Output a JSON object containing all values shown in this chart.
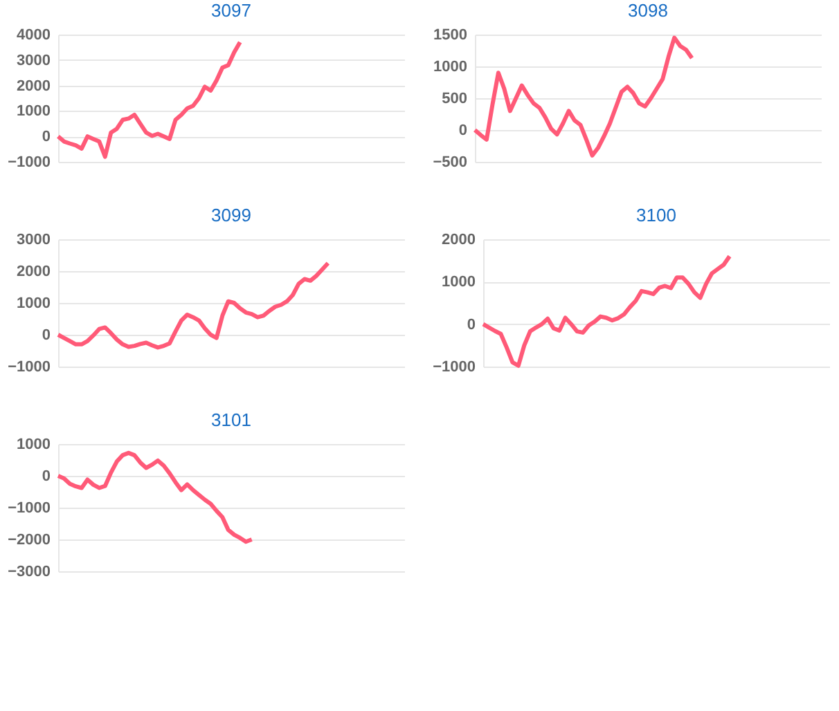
{
  "chart_data": [
    {
      "type": "line",
      "title": "3097",
      "categories": [
        null,
        null,
        null,
        null,
        null,
        null,
        null,
        null,
        null,
        null,
        null,
        null,
        null,
        null,
        null,
        null,
        null,
        null,
        null,
        null,
        null,
        null,
        null,
        null,
        null,
        null,
        null,
        null,
        null,
        null,
        null,
        null,
        null,
        null,
        null,
        null,
        null,
        null,
        null,
        null,
        null,
        null,
        null,
        null,
        null,
        null,
        null,
        null,
        null,
        null,
        null,
        null,
        null,
        null,
        null,
        null,
        null,
        null,
        null,
        null
      ],
      "tick_labels": "y",
      "grid": "y",
      "legend": false,
      "marker": "none",
      "line_style": "solid",
      "ylim": [
        -1000,
        4000
      ],
      "yticks": [
        -1000,
        0,
        1000,
        2000,
        3000,
        4000
      ],
      "series": [
        {
          "color": "#ff5a78",
          "values": [
            0,
            -200,
            -280,
            -350,
            -480,
            0,
            -100,
            -200,
            -800,
            150,
            300,
            650,
            700,
            850,
            500,
            150,
            20,
            100,
            0,
            -100,
            650,
            850,
            1100,
            1200,
            1500,
            1950,
            1800,
            2200,
            2700,
            2800,
            3300,
            3700,
            null,
            null,
            null,
            null,
            null,
            null,
            null,
            null,
            null,
            null,
            null,
            null,
            null,
            null,
            null,
            null,
            null,
            null,
            null,
            null,
            null,
            null,
            null,
            null,
            null,
            null,
            null,
            null
          ]
        }
      ]
    },
    {
      "type": "line",
      "title": "3098",
      "categories": [
        null,
        null,
        null,
        null,
        null,
        null,
        null,
        null,
        null,
        null,
        null,
        null,
        null,
        null,
        null,
        null,
        null,
        null,
        null,
        null,
        null,
        null,
        null,
        null,
        null,
        null,
        null,
        null,
        null,
        null,
        null,
        null,
        null,
        null,
        null,
        null,
        null,
        null,
        null,
        null,
        null,
        null,
        null,
        null,
        null,
        null,
        null,
        null,
        null,
        null,
        null,
        null,
        null,
        null,
        null,
        null,
        null,
        null,
        null,
        null
      ],
      "tick_labels": "y",
      "grid": "y",
      "legend": false,
      "marker": "none",
      "line_style": "solid",
      "ylim": [
        -500,
        1500
      ],
      "yticks": [
        -500,
        0,
        500,
        1000,
        1500
      ],
      "series": [
        {
          "color": "#ff5a78",
          "values": [
            0,
            -80,
            -150,
            400,
            900,
            650,
            300,
            500,
            700,
            550,
            420,
            350,
            200,
            20,
            -70,
            100,
            300,
            150,
            80,
            -150,
            -400,
            -280,
            -100,
            100,
            350,
            600,
            680,
            580,
            420,
            370,
            500,
            650,
            800,
            1150,
            1450,
            1320,
            1260,
            1130,
            null,
            null,
            null,
            null,
            null,
            null,
            null,
            null,
            null,
            null,
            null,
            null,
            null,
            null,
            null,
            null,
            null,
            null,
            null,
            null,
            null,
            null
          ]
        }
      ]
    },
    {
      "type": "line",
      "title": "3099",
      "categories": [
        null,
        null,
        null,
        null,
        null,
        null,
        null,
        null,
        null,
        null,
        null,
        null,
        null,
        null,
        null,
        null,
        null,
        null,
        null,
        null,
        null,
        null,
        null,
        null,
        null,
        null,
        null,
        null,
        null,
        null,
        null,
        null,
        null,
        null,
        null,
        null,
        null,
        null,
        null,
        null,
        null,
        null,
        null,
        null,
        null,
        null,
        null,
        null,
        null,
        null,
        null,
        null,
        null,
        null,
        null,
        null,
        null,
        null,
        null,
        null
      ],
      "tick_labels": "y",
      "grid": "y",
      "legend": false,
      "marker": "none",
      "line_style": "solid",
      "ylim": [
        -1000,
        3000
      ],
      "yticks": [
        -1000,
        0,
        1000,
        2000,
        3000
      ],
      "series": [
        {
          "color": "#ff5a78",
          "values": [
            0,
            -100,
            -200,
            -300,
            -300,
            -200,
            -20,
            180,
            230,
            50,
            -150,
            -300,
            -380,
            -350,
            -290,
            -250,
            -330,
            -400,
            -350,
            -270,
            100,
            450,
            630,
            550,
            450,
            200,
            0,
            -100,
            600,
            1050,
            1000,
            830,
            700,
            650,
            550,
            600,
            750,
            880,
            940,
            1050,
            1250,
            1600,
            1750,
            1700,
            1850,
            2050,
            2250,
            null,
            null,
            null,
            null,
            null,
            null,
            null,
            null,
            null,
            null,
            null,
            null,
            null
          ]
        }
      ]
    },
    {
      "type": "line",
      "title": "3100",
      "categories": [
        null,
        null,
        null,
        null,
        null,
        null,
        null,
        null,
        null,
        null,
        null,
        null,
        null,
        null,
        null,
        null,
        null,
        null,
        null,
        null,
        null,
        null,
        null,
        null,
        null,
        null,
        null,
        null,
        null,
        null,
        null,
        null,
        null,
        null,
        null,
        null,
        null,
        null,
        null,
        null,
        null,
        null,
        null,
        null,
        null,
        null,
        null,
        null,
        null,
        null,
        null,
        null,
        null,
        null,
        null,
        null,
        null,
        null,
        null,
        null
      ],
      "tick_labels": "y",
      "grid": "y",
      "legend": false,
      "marker": "none",
      "line_style": "solid",
      "ylim": [
        -1000,
        2000
      ],
      "yticks": [
        -1000,
        0,
        1000,
        2000
      ],
      "series": [
        {
          "color": "#ff5a78",
          "values": [
            0,
            -80,
            -160,
            -230,
            -550,
            -900,
            -980,
            -500,
            -170,
            -80,
            0,
            130,
            -100,
            -150,
            150,
            0,
            -170,
            -200,
            -30,
            60,
            180,
            150,
            90,
            140,
            230,
            400,
            550,
            780,
            750,
            710,
            860,
            900,
            850,
            1100,
            1100,
            950,
            750,
            620,
            950,
            1200,
            1300,
            1400,
            1600,
            null,
            null,
            null,
            null,
            null,
            null,
            null,
            null,
            null,
            null,
            null,
            null,
            null,
            null,
            null,
            null,
            null
          ]
        }
      ]
    },
    {
      "type": "line",
      "title": "3101",
      "categories": [
        null,
        null,
        null,
        null,
        null,
        null,
        null,
        null,
        null,
        null,
        null,
        null,
        null,
        null,
        null,
        null,
        null,
        null,
        null,
        null,
        null,
        null,
        null,
        null,
        null,
        null,
        null,
        null,
        null,
        null,
        null,
        null,
        null,
        null,
        null,
        null,
        null,
        null,
        null,
        null,
        null,
        null,
        null,
        null,
        null,
        null,
        null,
        null,
        null,
        null,
        null,
        null,
        null,
        null,
        null,
        null,
        null,
        null,
        null,
        null
      ],
      "tick_labels": "y",
      "grid": "y",
      "legend": false,
      "marker": "none",
      "line_style": "solid",
      "ylim": [
        -3000,
        1000
      ],
      "yticks": [
        -3000,
        -2000,
        -1000,
        0,
        1000
      ],
      "series": [
        {
          "color": "#ff5a78",
          "values": [
            0,
            -80,
            -250,
            -330,
            -380,
            -120,
            -280,
            -380,
            -320,
            100,
            450,
            650,
            720,
            650,
            420,
            250,
            350,
            480,
            320,
            80,
            -200,
            -450,
            -270,
            -450,
            -600,
            -750,
            -880,
            -1100,
            -1300,
            -1700,
            -1850,
            -1950,
            -2070,
            -2000,
            null,
            null,
            null,
            null,
            null,
            null,
            null,
            null,
            null,
            null,
            null,
            null,
            null,
            null,
            null,
            null,
            null,
            null,
            null,
            null,
            null,
            null,
            null,
            null,
            null,
            null
          ]
        }
      ]
    }
  ]
}
